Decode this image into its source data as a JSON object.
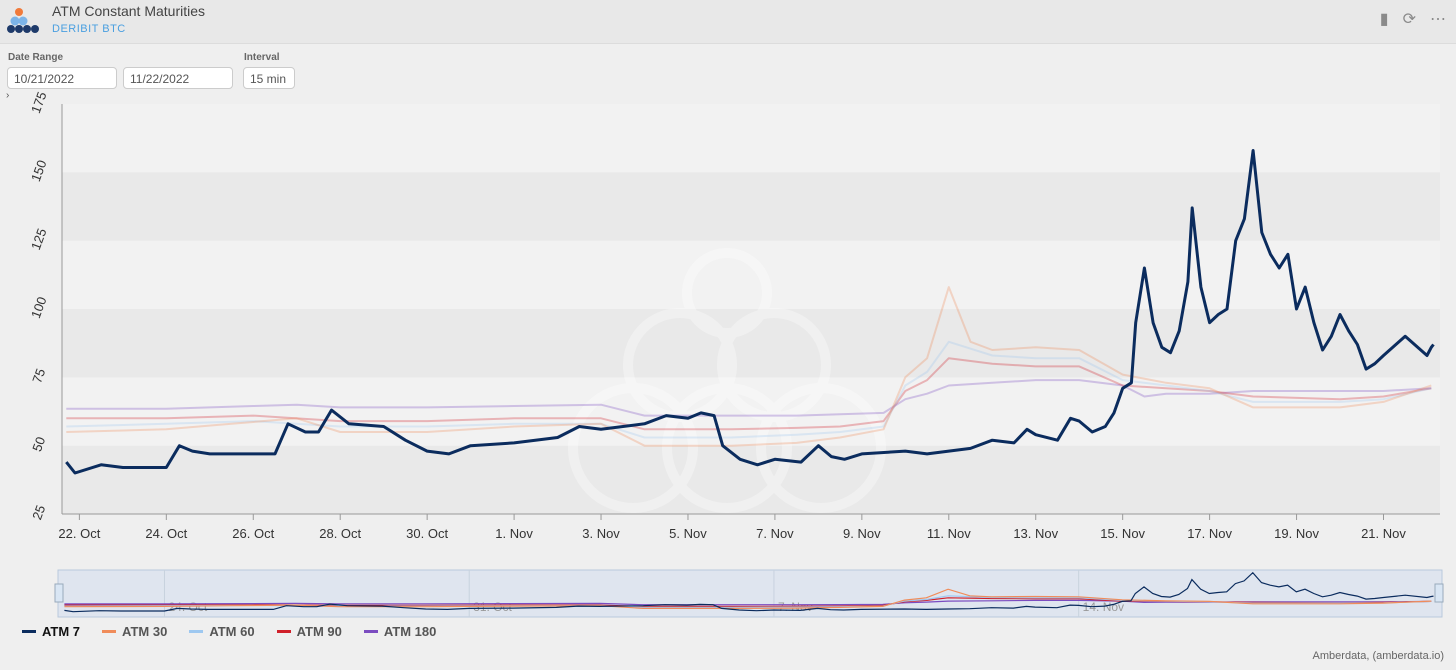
{
  "header": {
    "title": "ATM Constant Maturities",
    "subtitle": "DERIBIT BTC"
  },
  "controls": {
    "date_range_label": "Date Range",
    "start_date": "10/21/2022",
    "end_date": "11/22/2022",
    "interval_label": "Interval",
    "interval": "15 min"
  },
  "navigator": {
    "labels": [
      "24. Oct",
      "31. Oct",
      "7. Nov",
      "14. Nov"
    ]
  },
  "credit": "Amberdata, (amberdata.io)",
  "colors": {
    "atm7": "#0b2c5e",
    "atm30": "#f08c5a",
    "atm60": "#9ec8f0",
    "atm90": "#d0202a",
    "atm180": "#7b4cc0"
  },
  "chart_data": {
    "type": "line",
    "ylim": [
      25,
      175
    ],
    "yticks": [
      "25",
      "50",
      "75",
      "100",
      "125",
      "150",
      "175"
    ],
    "xlim": [
      21.6,
      53.3
    ],
    "xtick_positions": [
      22,
      24,
      26,
      28,
      30,
      32,
      34,
      36,
      38,
      40,
      42,
      44,
      46,
      48,
      50,
      52
    ],
    "xtick_labels": [
      "22. Oct",
      "24. Oct",
      "26. Oct",
      "28. Oct",
      "30. Oct",
      "1. Nov",
      "3. Nov",
      "5. Nov",
      "7. Nov",
      "9. Nov",
      "11. Nov",
      "13. Nov",
      "15. Nov",
      "17. Nov",
      "19. Nov",
      "21. Nov"
    ],
    "x_note": "x = day index counting from 1 Oct 2022 (22 = 22. Oct, 32 = 1. Nov)",
    "grid": true,
    "legend_position": "bottom-left",
    "series": [
      {
        "name": "ATM 180",
        "color": "#7b4cc0",
        "points": [
          [
            21.7,
            63.5
          ],
          [
            24,
            63.5
          ],
          [
            26,
            64.5
          ],
          [
            27,
            65
          ],
          [
            28,
            64
          ],
          [
            30,
            64
          ],
          [
            32,
            64.5
          ],
          [
            34,
            65
          ],
          [
            35,
            61
          ],
          [
            37,
            61
          ],
          [
            38.5,
            61
          ],
          [
            39.5,
            61.5
          ],
          [
            40.5,
            62
          ],
          [
            41,
            67
          ],
          [
            41.5,
            69
          ],
          [
            42,
            72
          ],
          [
            43,
            73
          ],
          [
            44,
            74
          ],
          [
            45,
            74
          ],
          [
            46,
            72
          ],
          [
            46.5,
            68
          ],
          [
            47,
            69
          ],
          [
            48,
            69
          ],
          [
            49,
            70
          ],
          [
            51,
            70
          ],
          [
            52,
            70
          ],
          [
            53.1,
            71
          ]
        ]
      },
      {
        "name": "ATM 90",
        "color": "#d0202a",
        "points": [
          [
            21.7,
            60
          ],
          [
            24,
            60
          ],
          [
            26,
            61
          ],
          [
            28,
            59
          ],
          [
            30,
            59
          ],
          [
            32,
            60
          ],
          [
            34,
            60
          ],
          [
            35,
            56
          ],
          [
            37,
            56
          ],
          [
            38.5,
            56.5
          ],
          [
            39.5,
            57
          ],
          [
            40.5,
            59
          ],
          [
            41,
            70
          ],
          [
            41.5,
            74
          ],
          [
            42,
            82
          ],
          [
            43,
            80
          ],
          [
            44,
            79
          ],
          [
            45,
            79
          ],
          [
            46,
            72
          ],
          [
            47,
            71
          ],
          [
            48,
            70
          ],
          [
            49,
            68
          ],
          [
            51,
            67
          ],
          [
            52,
            68
          ],
          [
            53.1,
            71
          ]
        ]
      },
      {
        "name": "ATM 60",
        "color": "#9ec8f0",
        "points": [
          [
            21.7,
            57
          ],
          [
            24,
            58
          ],
          [
            26,
            59
          ],
          [
            28,
            57
          ],
          [
            30,
            57
          ],
          [
            32,
            58
          ],
          [
            34,
            58
          ],
          [
            35,
            53
          ],
          [
            37,
            53
          ],
          [
            38.5,
            54
          ],
          [
            39.5,
            55
          ],
          [
            40.5,
            57
          ],
          [
            41,
            72
          ],
          [
            41.5,
            77
          ],
          [
            42,
            88
          ],
          [
            43,
            83
          ],
          [
            44,
            82
          ],
          [
            45,
            82
          ],
          [
            46,
            74
          ],
          [
            47,
            72
          ],
          [
            48,
            70
          ],
          [
            49,
            66
          ],
          [
            51,
            66
          ],
          [
            52,
            67
          ],
          [
            53.1,
            71
          ]
        ]
      },
      {
        "name": "ATM 30",
        "color": "#f08c5a",
        "points": [
          [
            21.7,
            55
          ],
          [
            24,
            56
          ],
          [
            25.5,
            58
          ],
          [
            27,
            60
          ],
          [
            28,
            55
          ],
          [
            30,
            55
          ],
          [
            32,
            57
          ],
          [
            34,
            58
          ],
          [
            35,
            50
          ],
          [
            37,
            50
          ],
          [
            38.5,
            51
          ],
          [
            39.5,
            53
          ],
          [
            40.5,
            56
          ],
          [
            41,
            75
          ],
          [
            41.5,
            82
          ],
          [
            42,
            108
          ],
          [
            42.5,
            88
          ],
          [
            43,
            85
          ],
          [
            44,
            86
          ],
          [
            45,
            85
          ],
          [
            46,
            76
          ],
          [
            47,
            73
          ],
          [
            48,
            71
          ],
          [
            49,
            64
          ],
          [
            51,
            64
          ],
          [
            52,
            66
          ],
          [
            53.1,
            72
          ]
        ]
      },
      {
        "name": "ATM 7",
        "color": "#0b2c5e",
        "points": [
          [
            21.7,
            44
          ],
          [
            21.9,
            40
          ],
          [
            22.5,
            43
          ],
          [
            23,
            42
          ],
          [
            24,
            42
          ],
          [
            24.3,
            50
          ],
          [
            24.6,
            48
          ],
          [
            25,
            47
          ],
          [
            26,
            47
          ],
          [
            26.5,
            47
          ],
          [
            26.8,
            58
          ],
          [
            27.2,
            55
          ],
          [
            27.5,
            55
          ],
          [
            27.8,
            63
          ],
          [
            28.2,
            58
          ],
          [
            29,
            57
          ],
          [
            29.5,
            52
          ],
          [
            30,
            48
          ],
          [
            30.5,
            47
          ],
          [
            31,
            50
          ],
          [
            32,
            51
          ],
          [
            33,
            53
          ],
          [
            33.5,
            57
          ],
          [
            34,
            56
          ],
          [
            35,
            58
          ],
          [
            35.5,
            61
          ],
          [
            36,
            60
          ],
          [
            36.3,
            62
          ],
          [
            36.6,
            61
          ],
          [
            36.8,
            50
          ],
          [
            37.2,
            45
          ],
          [
            37.6,
            43
          ],
          [
            38,
            45
          ],
          [
            38.6,
            44
          ],
          [
            39,
            50
          ],
          [
            39.3,
            46
          ],
          [
            39.6,
            45
          ],
          [
            40,
            47
          ],
          [
            41,
            48
          ],
          [
            41.5,
            47
          ],
          [
            42,
            48
          ],
          [
            42.5,
            49
          ],
          [
            43,
            52
          ],
          [
            43.5,
            51
          ],
          [
            43.8,
            56
          ],
          [
            44,
            54
          ],
          [
            44.5,
            52
          ],
          [
            44.8,
            60
          ],
          [
            45,
            59
          ],
          [
            45.3,
            55
          ],
          [
            45.6,
            57
          ],
          [
            45.8,
            62
          ],
          [
            46,
            71
          ],
          [
            46.2,
            73
          ],
          [
            46.3,
            95
          ],
          [
            46.5,
            115
          ],
          [
            46.7,
            95
          ],
          [
            46.9,
            86
          ],
          [
            47.1,
            84
          ],
          [
            47.3,
            92
          ],
          [
            47.5,
            110
          ],
          [
            47.6,
            137
          ],
          [
            47.8,
            108
          ],
          [
            48,
            95
          ],
          [
            48.2,
            98
          ],
          [
            48.4,
            100
          ],
          [
            48.6,
            125
          ],
          [
            48.8,
            133
          ],
          [
            49,
            158
          ],
          [
            49.2,
            128
          ],
          [
            49.4,
            120
          ],
          [
            49.6,
            115
          ],
          [
            49.8,
            120
          ],
          [
            50,
            100
          ],
          [
            50.2,
            108
          ],
          [
            50.4,
            95
          ],
          [
            50.6,
            85
          ],
          [
            50.8,
            90
          ],
          [
            51,
            98
          ],
          [
            51.2,
            92
          ],
          [
            51.4,
            87
          ],
          [
            51.6,
            78
          ],
          [
            51.8,
            80
          ],
          [
            52,
            83
          ],
          [
            52.5,
            90
          ],
          [
            53,
            83
          ],
          [
            53.1,
            86
          ],
          [
            53.15,
            87
          ]
        ]
      }
    ]
  }
}
